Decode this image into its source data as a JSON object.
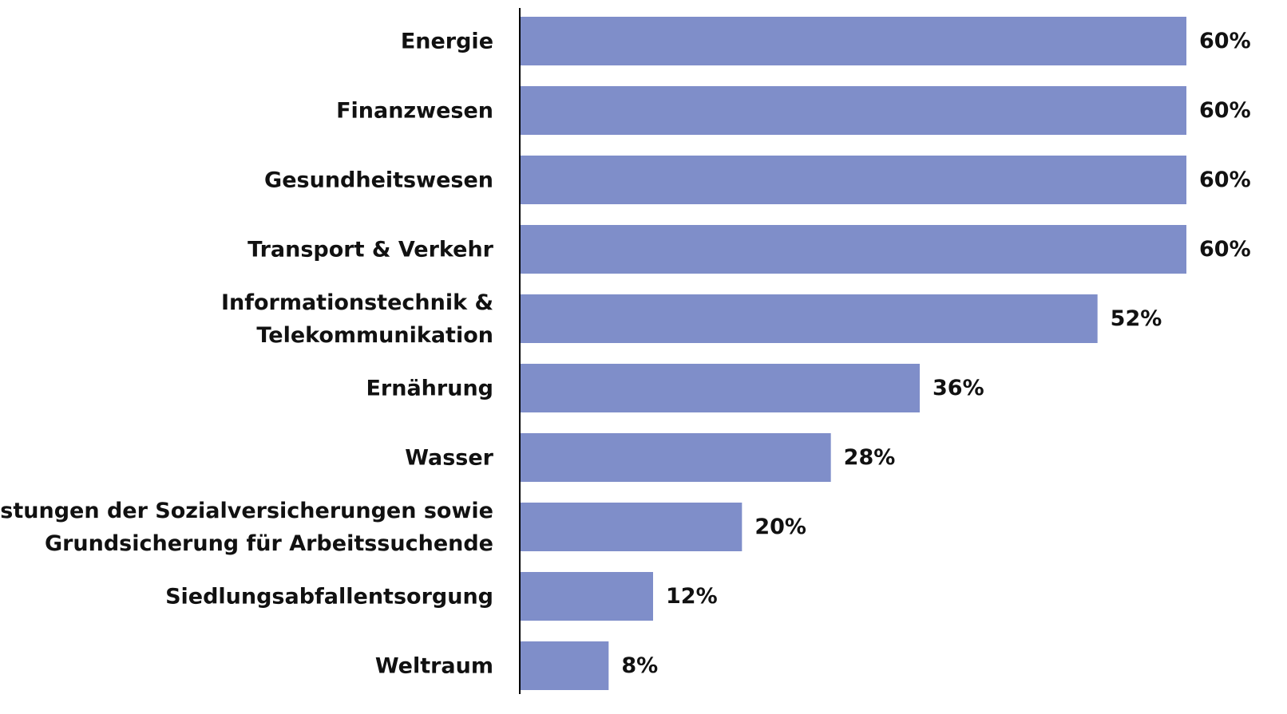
{
  "chart_data": {
    "type": "bar",
    "orientation": "horizontal",
    "categories": [
      "Energie",
      "Finanzwesen",
      "Gesundheitswesen",
      "Transport & Verkehr",
      "Informationstechnik &\nTelekommunikation",
      "Ernährung",
      "Wasser",
      "Leistungen der Sozialversicherungen sowie\nGrundsicherung für Arbeitssuchende",
      "Siedlungsabfallentsorgung",
      "Weltraum"
    ],
    "values": [
      60,
      60,
      60,
      60,
      52,
      36,
      28,
      20,
      12,
      8
    ],
    "value_labels": [
      "60%",
      "60%",
      "60%",
      "60%",
      "52%",
      "36%",
      "28%",
      "20%",
      "12%",
      "8%"
    ],
    "color": "#7f8ec9"
  }
}
